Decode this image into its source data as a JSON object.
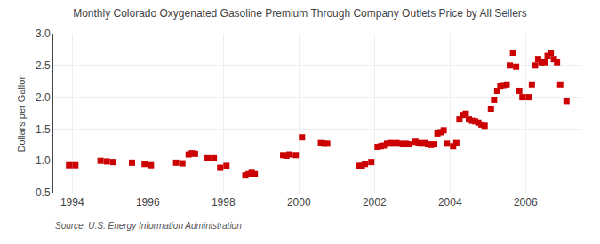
{
  "chart_data": {
    "type": "scatter",
    "title": "Monthly Colorado Oxygenated Gasoline Premium Through Company Outlets Price by All Sellers",
    "ylabel": "Dollars per Gallon",
    "annotations": [
      "Source: U.S. Energy Information Administration"
    ],
    "color": "#cc0000",
    "marker": "square",
    "grid": true,
    "xlim": [
      1993.5,
      2007.5
    ],
    "xticks": [
      1994,
      1996,
      1998,
      2000,
      2002,
      2004,
      2006
    ],
    "ylim": [
      0.5,
      3.0
    ],
    "yticks": [
      0.5,
      {
        "value": 1.0,
        "label": "1.0"
      },
      1.5,
      {
        "value": 2.0,
        "label": "2.0"
      },
      2.5,
      {
        "value": 3.0,
        "label": "3.0"
      }
    ],
    "x": [
      1993.917,
      1994.083,
      1994.75,
      1994.917,
      1995.083,
      1995.583,
      1995.917,
      1996.083,
      1996.75,
      1996.917,
      1997.083,
      1997.167,
      1997.25,
      1997.583,
      1997.75,
      1997.917,
      1998.083,
      1998.583,
      1998.667,
      1998.75,
      1998.833,
      1999.583,
      1999.667,
      1999.75,
      1999.917,
      2000.083,
      2000.583,
      2000.667,
      2000.75,
      2001.583,
      2001.667,
      2001.75,
      2001.917,
      2002.083,
      2002.167,
      2002.25,
      2002.333,
      2002.417,
      2002.5,
      2002.583,
      2002.667,
      2002.75,
      2002.833,
      2002.917,
      2003.083,
      2003.167,
      2003.25,
      2003.333,
      2003.417,
      2003.5,
      2003.583,
      2003.667,
      2003.75,
      2003.833,
      2003.917,
      2004.083,
      2004.167,
      2004.25,
      2004.333,
      2004.417,
      2004.5,
      2004.583,
      2004.667,
      2004.75,
      2004.833,
      2004.917,
      2005.083,
      2005.167,
      2005.25,
      2005.333,
      2005.417,
      2005.5,
      2005.583,
      2005.667,
      2005.75,
      2005.833,
      2005.917,
      2006.083,
      2006.167,
      2006.25,
      2006.333,
      2006.417,
      2006.5,
      2006.583,
      2006.667,
      2006.75,
      2006.833,
      2006.917,
      2007.083
    ],
    "values": [
      0.93,
      0.93,
      1.0,
      0.99,
      0.98,
      0.97,
      0.95,
      0.93,
      0.97,
      0.96,
      1.1,
      1.12,
      1.11,
      1.04,
      1.04,
      0.89,
      0.92,
      0.77,
      0.79,
      0.81,
      0.79,
      1.09,
      1.08,
      1.1,
      1.09,
      1.37,
      1.28,
      1.27,
      1.27,
      0.92,
      0.92,
      0.95,
      0.98,
      1.22,
      1.23,
      1.24,
      1.27,
      1.28,
      1.27,
      1.28,
      1.27,
      1.26,
      1.27,
      1.26,
      1.3,
      1.28,
      1.27,
      1.28,
      1.26,
      1.25,
      1.26,
      1.43,
      1.45,
      1.48,
      1.27,
      1.23,
      1.28,
      1.65,
      1.72,
      1.74,
      1.65,
      1.63,
      1.62,
      1.6,
      1.57,
      1.55,
      1.82,
      1.96,
      2.1,
      2.18,
      2.19,
      2.2,
      2.5,
      2.7,
      2.48,
      2.1,
      2.0,
      2.0,
      2.2,
      2.5,
      2.6,
      2.55,
      2.55,
      2.65,
      2.7,
      2.6,
      2.55,
      2.2,
      1.94
    ]
  }
}
